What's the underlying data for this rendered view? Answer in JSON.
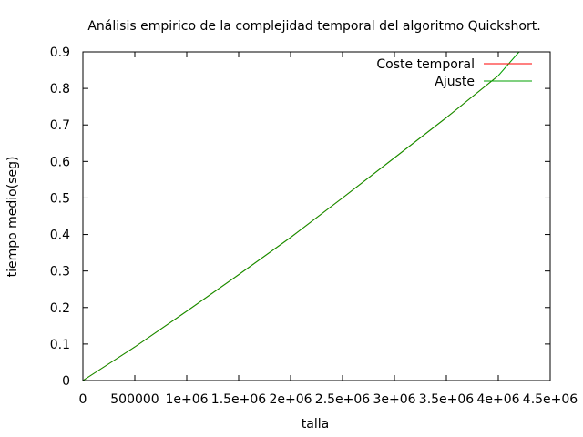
{
  "chart_data": {
    "type": "line",
    "title": "Análisis empirico de la complejidad temporal del algoritmo Quickshort.",
    "xlabel": "talla",
    "ylabel": "tiempo medio(seg)",
    "xlim": [
      0,
      4500000
    ],
    "ylim": [
      0,
      0.9
    ],
    "x_ticks": [
      0,
      500000,
      1000000,
      1500000,
      2000000,
      2500000,
      3000000,
      3500000,
      4000000,
      4500000
    ],
    "x_tick_labels": [
      "0",
      "500000",
      "1e+06",
      "1.5e+06",
      "2e+06",
      "2.5e+06",
      "3e+06",
      "3.5e+06",
      "4e+06",
      "4.5e+06"
    ],
    "y_ticks": [
      0,
      0.1,
      0.2,
      0.3,
      0.4,
      0.5,
      0.6,
      0.7,
      0.8,
      0.9
    ],
    "y_tick_labels": [
      "0",
      "0.1",
      "0.2",
      "0.3",
      "0.4",
      "0.5",
      "0.6",
      "0.7",
      "0.8",
      "0.9"
    ],
    "grid": false,
    "legend_position": "top-right",
    "series": [
      {
        "name": "Coste temporal",
        "color": "#ff0000",
        "x": [
          0,
          500000,
          1000000,
          1500000,
          2000000,
          2500000,
          3000000,
          3500000,
          4000000
        ],
        "y": [
          0,
          0.092,
          0.19,
          0.29,
          0.392,
          0.5,
          0.61,
          0.72,
          0.835
        ]
      },
      {
        "name": "Ajuste",
        "color": "#00a000",
        "x": [
          0,
          500000,
          1000000,
          1500000,
          2000000,
          2500000,
          3000000,
          3500000,
          4000000,
          4200000
        ],
        "y": [
          0,
          0.092,
          0.19,
          0.29,
          0.392,
          0.5,
          0.61,
          0.72,
          0.835,
          0.9
        ]
      }
    ]
  }
}
